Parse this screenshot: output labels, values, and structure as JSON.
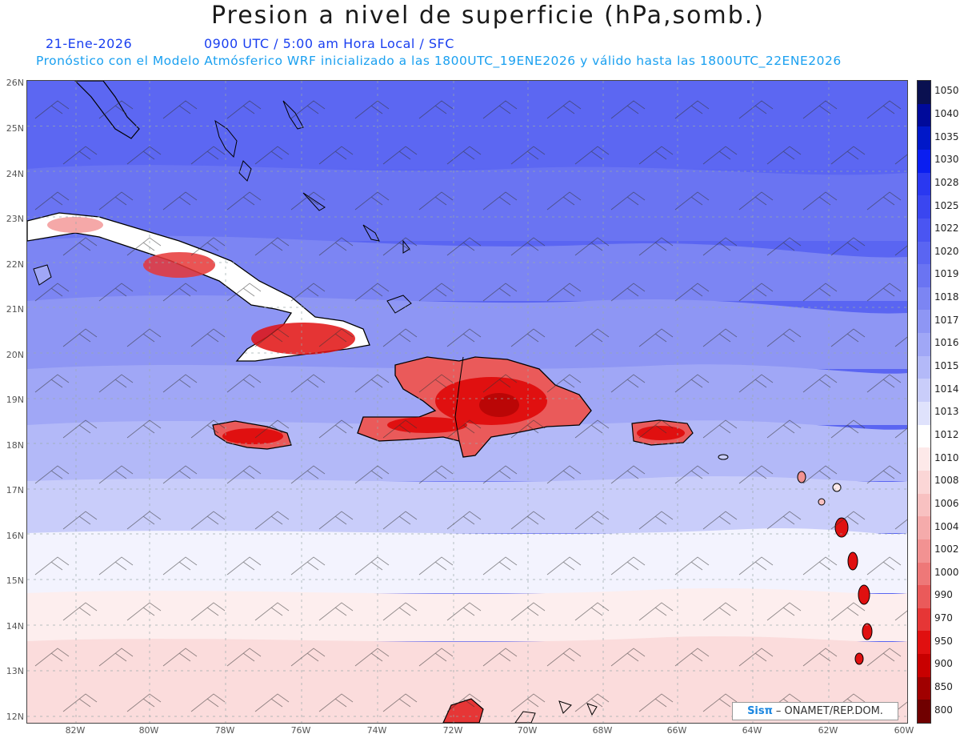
{
  "header": {
    "title": "Presion a nivel de superficie (hPa,somb.)",
    "date": "21-Ene-2026",
    "time_info": "0900 UTC / 5:00 am Hora Local / SFC",
    "forecast_info": "Pronóstico con el Modelo Atmósferico WRF inicializado a las 1800UTC_19ENE2026 y válido hasta las  1800UTC_22ENE2026"
  },
  "axes": {
    "lat_labels": [
      "26N",
      "25N",
      "24N",
      "23N",
      "22N",
      "21N",
      "20N",
      "19N",
      "18N",
      "17N",
      "16N",
      "15N",
      "14N",
      "13N",
      "12N"
    ],
    "lon_labels": [
      "82W",
      "80W",
      "78W",
      "76W",
      "74W",
      "72W",
      "70W",
      "68W",
      "66W",
      "64W",
      "62W",
      "60W"
    ]
  },
  "colorbar": {
    "levels": [
      "1050",
      "1040",
      "1035",
      "1030",
      "1028",
      "1025",
      "1022",
      "1020",
      "1019",
      "1018",
      "1017",
      "1016",
      "1015",
      "1014",
      "1013",
      "1012",
      "1010",
      "1008",
      "1006",
      "1004",
      "1002",
      "1000",
      "990",
      "970",
      "950",
      "900",
      "850",
      "800"
    ],
    "colors": [
      "#0a1050",
      "#000a9a",
      "#0018c8",
      "#0a1ef0",
      "#2a38f0",
      "#3a46f0",
      "#4a55f2",
      "#5a65f2",
      "#6a74f2",
      "#7c85f3",
      "#8e96f4",
      "#a0a7f6",
      "#b3b9f8",
      "#c9cdfa",
      "#dfe2fc",
      "#ffffff",
      "#fde9e9",
      "#fbd6d6",
      "#f8c1c1",
      "#f5abab",
      "#f29292",
      "#ee7878",
      "#ea5a5a",
      "#e63636",
      "#e01010",
      "#c80000",
      "#a00000",
      "#700000"
    ]
  },
  "credit": {
    "logo": "Sisπ",
    "org": " – ONAMET/REP.DOM."
  }
}
